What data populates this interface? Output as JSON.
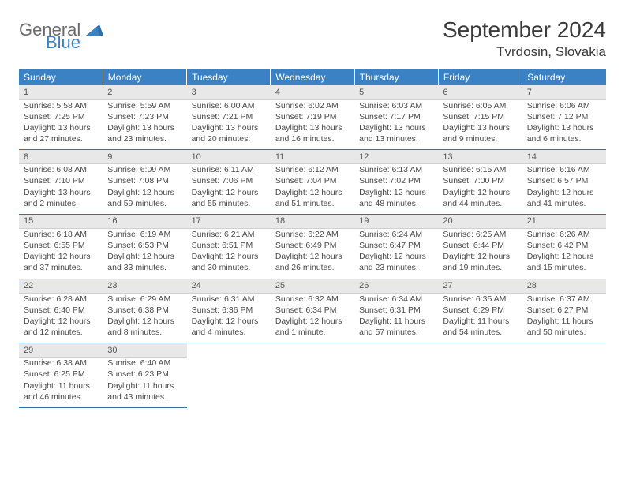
{
  "logo": {
    "general": "General",
    "blue": "Blue"
  },
  "title": "September 2024",
  "location": "Tvrdosin, Slovakia",
  "colors": {
    "header_bg": "#3b82c4",
    "header_text": "#ffffff",
    "daynum_bg": "#e8e8e8",
    "rule": "#3b6fa0",
    "text": "#4a4a4a"
  },
  "weekdays": [
    "Sunday",
    "Monday",
    "Tuesday",
    "Wednesday",
    "Thursday",
    "Friday",
    "Saturday"
  ],
  "weeks": [
    [
      {
        "n": "1",
        "sr": "Sunrise: 5:58 AM",
        "ss": "Sunset: 7:25 PM",
        "d1": "Daylight: 13 hours",
        "d2": "and 27 minutes."
      },
      {
        "n": "2",
        "sr": "Sunrise: 5:59 AM",
        "ss": "Sunset: 7:23 PM",
        "d1": "Daylight: 13 hours",
        "d2": "and 23 minutes."
      },
      {
        "n": "3",
        "sr": "Sunrise: 6:00 AM",
        "ss": "Sunset: 7:21 PM",
        "d1": "Daylight: 13 hours",
        "d2": "and 20 minutes."
      },
      {
        "n": "4",
        "sr": "Sunrise: 6:02 AM",
        "ss": "Sunset: 7:19 PM",
        "d1": "Daylight: 13 hours",
        "d2": "and 16 minutes."
      },
      {
        "n": "5",
        "sr": "Sunrise: 6:03 AM",
        "ss": "Sunset: 7:17 PM",
        "d1": "Daylight: 13 hours",
        "d2": "and 13 minutes."
      },
      {
        "n": "6",
        "sr": "Sunrise: 6:05 AM",
        "ss": "Sunset: 7:15 PM",
        "d1": "Daylight: 13 hours",
        "d2": "and 9 minutes."
      },
      {
        "n": "7",
        "sr": "Sunrise: 6:06 AM",
        "ss": "Sunset: 7:12 PM",
        "d1": "Daylight: 13 hours",
        "d2": "and 6 minutes."
      }
    ],
    [
      {
        "n": "8",
        "sr": "Sunrise: 6:08 AM",
        "ss": "Sunset: 7:10 PM",
        "d1": "Daylight: 13 hours",
        "d2": "and 2 minutes."
      },
      {
        "n": "9",
        "sr": "Sunrise: 6:09 AM",
        "ss": "Sunset: 7:08 PM",
        "d1": "Daylight: 12 hours",
        "d2": "and 59 minutes."
      },
      {
        "n": "10",
        "sr": "Sunrise: 6:11 AM",
        "ss": "Sunset: 7:06 PM",
        "d1": "Daylight: 12 hours",
        "d2": "and 55 minutes."
      },
      {
        "n": "11",
        "sr": "Sunrise: 6:12 AM",
        "ss": "Sunset: 7:04 PM",
        "d1": "Daylight: 12 hours",
        "d2": "and 51 minutes."
      },
      {
        "n": "12",
        "sr": "Sunrise: 6:13 AM",
        "ss": "Sunset: 7:02 PM",
        "d1": "Daylight: 12 hours",
        "d2": "and 48 minutes."
      },
      {
        "n": "13",
        "sr": "Sunrise: 6:15 AM",
        "ss": "Sunset: 7:00 PM",
        "d1": "Daylight: 12 hours",
        "d2": "and 44 minutes."
      },
      {
        "n": "14",
        "sr": "Sunrise: 6:16 AM",
        "ss": "Sunset: 6:57 PM",
        "d1": "Daylight: 12 hours",
        "d2": "and 41 minutes."
      }
    ],
    [
      {
        "n": "15",
        "sr": "Sunrise: 6:18 AM",
        "ss": "Sunset: 6:55 PM",
        "d1": "Daylight: 12 hours",
        "d2": "and 37 minutes."
      },
      {
        "n": "16",
        "sr": "Sunrise: 6:19 AM",
        "ss": "Sunset: 6:53 PM",
        "d1": "Daylight: 12 hours",
        "d2": "and 33 minutes."
      },
      {
        "n": "17",
        "sr": "Sunrise: 6:21 AM",
        "ss": "Sunset: 6:51 PM",
        "d1": "Daylight: 12 hours",
        "d2": "and 30 minutes."
      },
      {
        "n": "18",
        "sr": "Sunrise: 6:22 AM",
        "ss": "Sunset: 6:49 PM",
        "d1": "Daylight: 12 hours",
        "d2": "and 26 minutes."
      },
      {
        "n": "19",
        "sr": "Sunrise: 6:24 AM",
        "ss": "Sunset: 6:47 PM",
        "d1": "Daylight: 12 hours",
        "d2": "and 23 minutes."
      },
      {
        "n": "20",
        "sr": "Sunrise: 6:25 AM",
        "ss": "Sunset: 6:44 PM",
        "d1": "Daylight: 12 hours",
        "d2": "and 19 minutes."
      },
      {
        "n": "21",
        "sr": "Sunrise: 6:26 AM",
        "ss": "Sunset: 6:42 PM",
        "d1": "Daylight: 12 hours",
        "d2": "and 15 minutes."
      }
    ],
    [
      {
        "n": "22",
        "sr": "Sunrise: 6:28 AM",
        "ss": "Sunset: 6:40 PM",
        "d1": "Daylight: 12 hours",
        "d2": "and 12 minutes."
      },
      {
        "n": "23",
        "sr": "Sunrise: 6:29 AM",
        "ss": "Sunset: 6:38 PM",
        "d1": "Daylight: 12 hours",
        "d2": "and 8 minutes."
      },
      {
        "n": "24",
        "sr": "Sunrise: 6:31 AM",
        "ss": "Sunset: 6:36 PM",
        "d1": "Daylight: 12 hours",
        "d2": "and 4 minutes."
      },
      {
        "n": "25",
        "sr": "Sunrise: 6:32 AM",
        "ss": "Sunset: 6:34 PM",
        "d1": "Daylight: 12 hours",
        "d2": "and 1 minute."
      },
      {
        "n": "26",
        "sr": "Sunrise: 6:34 AM",
        "ss": "Sunset: 6:31 PM",
        "d1": "Daylight: 11 hours",
        "d2": "and 57 minutes."
      },
      {
        "n": "27",
        "sr": "Sunrise: 6:35 AM",
        "ss": "Sunset: 6:29 PM",
        "d1": "Daylight: 11 hours",
        "d2": "and 54 minutes."
      },
      {
        "n": "28",
        "sr": "Sunrise: 6:37 AM",
        "ss": "Sunset: 6:27 PM",
        "d1": "Daylight: 11 hours",
        "d2": "and 50 minutes."
      }
    ],
    [
      {
        "n": "29",
        "sr": "Sunrise: 6:38 AM",
        "ss": "Sunset: 6:25 PM",
        "d1": "Daylight: 11 hours",
        "d2": "and 46 minutes."
      },
      {
        "n": "30",
        "sr": "Sunrise: 6:40 AM",
        "ss": "Sunset: 6:23 PM",
        "d1": "Daylight: 11 hours",
        "d2": "and 43 minutes."
      },
      null,
      null,
      null,
      null,
      null
    ]
  ]
}
